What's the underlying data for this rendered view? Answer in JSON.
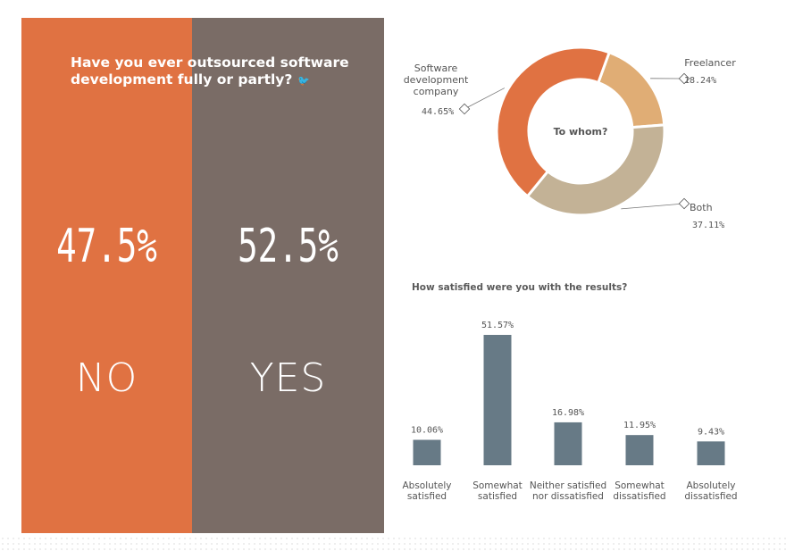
{
  "main_question": "Have you ever outsourced software development fully or partly?",
  "twitter_icon": "twitter-bird-icon",
  "no": {
    "percent": "47.5%",
    "label": "NO",
    "value": 47.5,
    "color": "#e07242"
  },
  "yes": {
    "percent": "52.5%",
    "label": "YES",
    "value": 52.5,
    "color": "#7a6c66"
  },
  "chart_data": [
    {
      "type": "pie",
      "title": "To whom?",
      "slices": [
        {
          "label_lines": [
            "Freelancer"
          ],
          "value": 18.24,
          "value_label": "18.24%",
          "color": "#e0ad75"
        },
        {
          "label_lines": [
            "Both"
          ],
          "value": 37.11,
          "value_label": "37.11%",
          "color": "#c3b296"
        },
        {
          "label_lines": [
            "Software",
            "development",
            "company"
          ],
          "value": 44.65,
          "value_label": "44.65%",
          "color": "#e07242"
        }
      ]
    },
    {
      "type": "bar",
      "title": "How satisfied were you with the results?",
      "categories": [
        [
          "Absolutely",
          "satisfied"
        ],
        [
          "Somewhat",
          "satisfied"
        ],
        [
          "Neither satisfied",
          "nor dissatisfied"
        ],
        [
          "Somewhat",
          "dissatisfied"
        ],
        [
          "Absolutely",
          "dissatisfied"
        ]
      ],
      "values": [
        10.06,
        51.57,
        16.98,
        11.95,
        9.43
      ],
      "value_labels": [
        "10.06%",
        "51.57%",
        "16.98%",
        "11.95%",
        "9.43%"
      ],
      "color": "#677a86"
    }
  ]
}
